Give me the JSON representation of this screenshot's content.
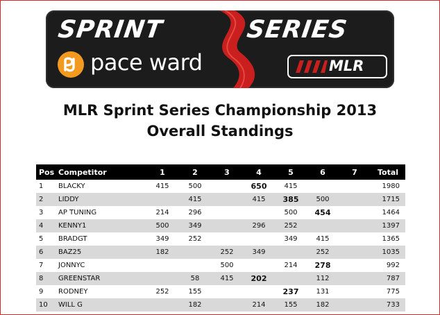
{
  "banner": {
    "word_left": "SPRINT",
    "word_right": "SERIES",
    "sponsor": "pace ward",
    "badge": "MLR"
  },
  "titles": {
    "line1": "MLR Sprint Series Championship 2013",
    "line2": "Overall Standings"
  },
  "table": {
    "headers": [
      "Pos",
      "Competitor",
      "1",
      "2",
      "3",
      "4",
      "5",
      "6",
      "7",
      "Total"
    ],
    "rows": [
      {
        "pos": "1",
        "name": "BLACKY",
        "r": [
          "415",
          "500",
          "",
          "650",
          "415",
          "",
          ""
        ],
        "total": "1980",
        "bold": [
          3
        ]
      },
      {
        "pos": "2",
        "name": "LIDDY",
        "r": [
          "",
          "415",
          "",
          "415",
          "385",
          "500",
          ""
        ],
        "total": "1715",
        "bold": [
          4
        ]
      },
      {
        "pos": "3",
        "name": "AP TUNING",
        "r": [
          "214",
          "296",
          "",
          "",
          "500",
          "454",
          ""
        ],
        "total": "1464",
        "bold": [
          5
        ]
      },
      {
        "pos": "4",
        "name": "KENNY1",
        "r": [
          "500",
          "349",
          "",
          "296",
          "252",
          "",
          ""
        ],
        "total": "1397",
        "bold": []
      },
      {
        "pos": "5",
        "name": "BRADGT",
        "r": [
          "349",
          "252",
          "",
          "",
          "349",
          "415",
          ""
        ],
        "total": "1365",
        "bold": []
      },
      {
        "pos": "6",
        "name": "BAZ25",
        "r": [
          "182",
          "",
          "252",
          "349",
          "",
          "252",
          ""
        ],
        "total": "1035",
        "bold": []
      },
      {
        "pos": "7",
        "name": "JONNYC",
        "r": [
          "",
          "",
          "500",
          "",
          "214",
          "278",
          ""
        ],
        "total": "992",
        "bold": [
          5
        ]
      },
      {
        "pos": "8",
        "name": "GREENSTAR",
        "r": [
          "",
          "58",
          "415",
          "202",
          "",
          "112",
          ""
        ],
        "total": "787",
        "bold": [
          3
        ]
      },
      {
        "pos": "9",
        "name": "RODNEY",
        "r": [
          "252",
          "155",
          "",
          "",
          "237",
          "131",
          ""
        ],
        "total": "775",
        "bold": [
          4
        ]
      },
      {
        "pos": "10",
        "name": "WILL G",
        "r": [
          "",
          "182",
          "",
          "214",
          "155",
          "182",
          ""
        ],
        "total": "733",
        "bold": []
      }
    ]
  },
  "colors": {
    "frame_border": "#d92b2b",
    "banner_bg": "#1c1c1c",
    "swoosh_red": "#c9201f",
    "sponsor_orange": "#f29a1f",
    "header_bg": "#000000",
    "alt_row_bg": "#d9d9d9"
  }
}
